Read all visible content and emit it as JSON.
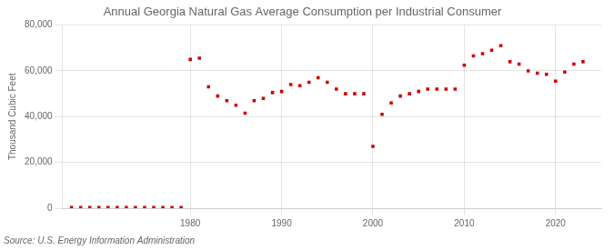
{
  "chart_data": {
    "type": "scatter",
    "title": "Annual Georgia Natural Gas Average Consumption per Industrial Consumer",
    "y_label": "Thousand Cubic Feet",
    "annotation": "Source: U.S. Energy Information Administration",
    "x": [
      1967,
      1968,
      1969,
      1970,
      1971,
      1972,
      1973,
      1974,
      1975,
      1976,
      1977,
      1978,
      1979,
      1980,
      1981,
      1982,
      1983,
      1984,
      1985,
      1986,
      1987,
      1988,
      1989,
      1990,
      1991,
      1992,
      1993,
      1994,
      1995,
      1996,
      1997,
      1998,
      1999,
      2000,
      2001,
      2002,
      2003,
      2004,
      2005,
      2006,
      2007,
      2008,
      2009,
      2010,
      2011,
      2012,
      2013,
      2014,
      2015,
      2016,
      2017,
      2018,
      2019,
      2020,
      2021,
      2022,
      2023
    ],
    "values": [
      300,
      300,
      300,
      300,
      300,
      300,
      300,
      300,
      300,
      300,
      300,
      300,
      300,
      65000,
      65500,
      53000,
      49000,
      47000,
      45000,
      41500,
      47000,
      48000,
      50500,
      51000,
      54000,
      53500,
      55000,
      57000,
      55000,
      52000,
      50000,
      50000,
      50000,
      27000,
      41000,
      46000,
      49000,
      50000,
      51000,
      52000,
      52000,
      52000,
      52000,
      62500,
      66500,
      67500,
      69000,
      71000,
      64000,
      63000,
      60000,
      59000,
      58500,
      55500,
      59500,
      63000,
      64000
    ],
    "color": "#cc0000",
    "marker": "square",
    "xlim": [
      1966,
      2025
    ],
    "xticks": [
      1980,
      1990,
      2000,
      2010,
      2020
    ],
    "ylim": [
      0,
      80000
    ],
    "yticks": [
      0,
      {
        "value": 20000,
        "label": "20,000"
      },
      {
        "value": 40000,
        "label": "40,000"
      },
      {
        "value": 60000,
        "label": "60,000"
      },
      {
        "value": 80000,
        "label": "80,000"
      }
    ],
    "grid": true
  }
}
